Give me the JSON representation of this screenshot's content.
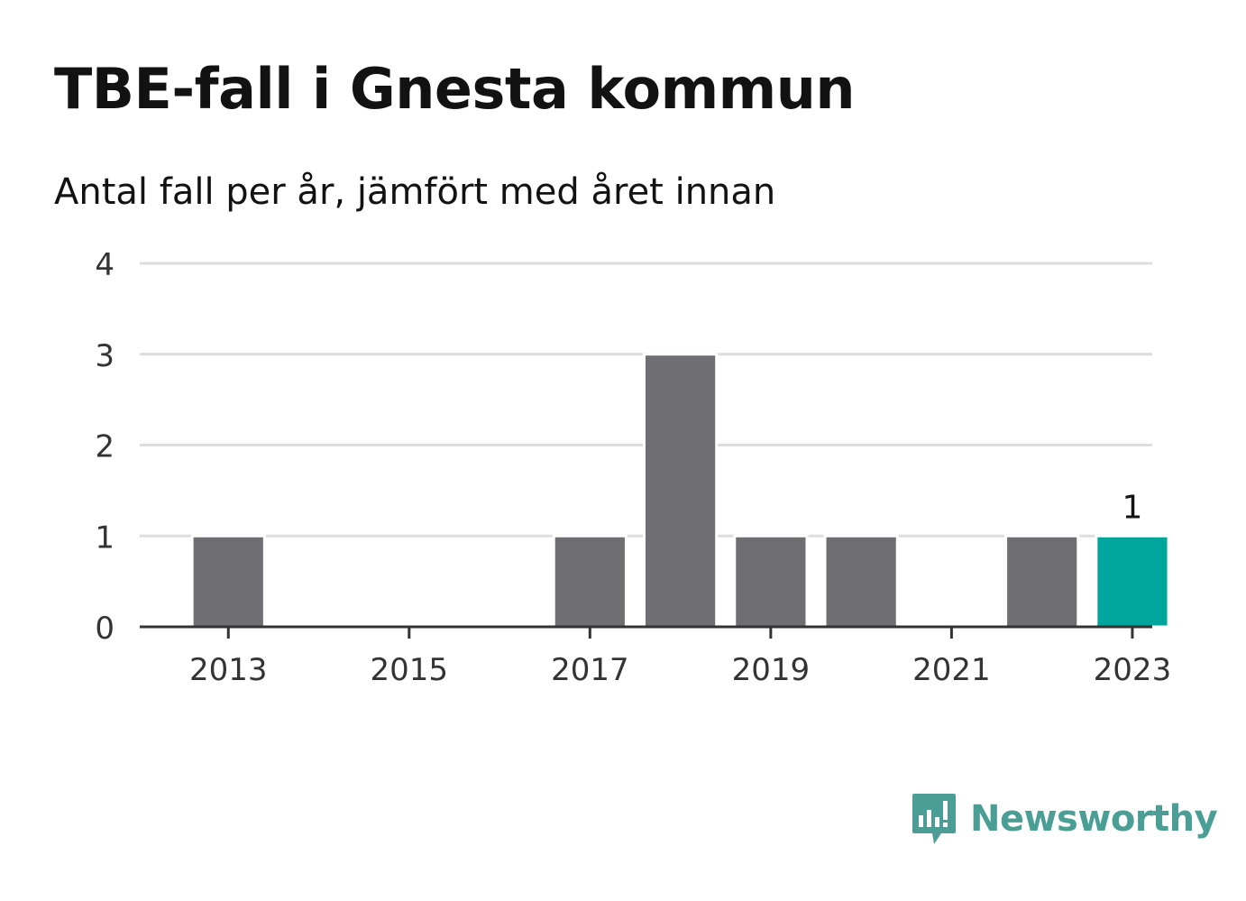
{
  "chart_data": {
    "type": "bar",
    "title": "TBE-fall i Gnesta kommun",
    "subtitle": "Antal fall per år, jämfört med året innan",
    "categories": [
      2013,
      2014,
      2015,
      2016,
      2017,
      2018,
      2019,
      2020,
      2021,
      2022,
      2023
    ],
    "values": [
      1,
      0,
      0,
      0,
      1,
      3,
      1,
      1,
      0,
      1,
      1
    ],
    "x_tick_labels": [
      "2013",
      "2015",
      "2017",
      "2019",
      "2021",
      "2023"
    ],
    "y_ticks": [
      0,
      1,
      2,
      3,
      4
    ],
    "ylim": [
      0,
      4
    ],
    "highlight_category": 2023,
    "highlight_label": "1",
    "xlabel": "",
    "ylabel": "",
    "grid": true,
    "colors": {
      "bar": "#6f6e73",
      "highlight": "#00a69b",
      "grid": "#dddddd",
      "axis": "#333333",
      "text": "#333333"
    }
  },
  "brand": {
    "name": "Newsworthy",
    "logo_icon": "newsworthy-bar-chart-speech-bubble-icon"
  }
}
